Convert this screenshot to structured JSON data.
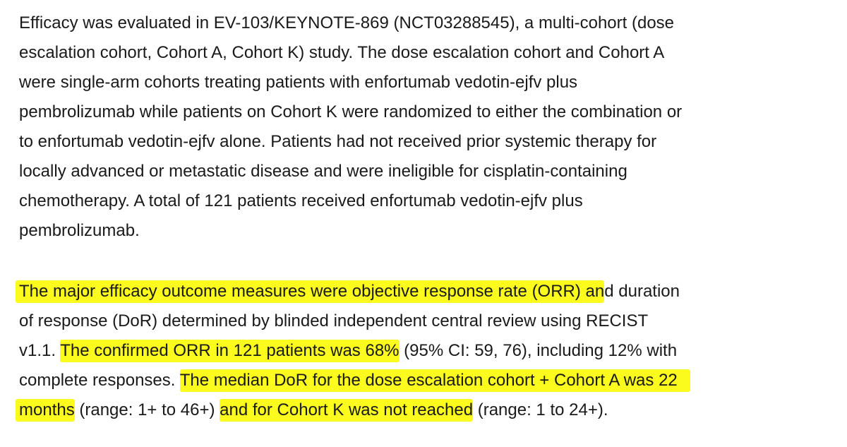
{
  "paragraph1": {
    "lines": [
      "Efficacy was evaluated in EV-103/KEYNOTE-869 (NCT03288545), a multi-cohort (dose",
      "escalation cohort, Cohort A, Cohort K) study. The dose escalation cohort and Cohort A",
      "were single-arm cohorts treating patients with enfortumab vedotin-ejfv plus",
      "pembrolizumab while patients on Cohort K were randomized to either the combination or",
      "to enfortumab vedotin-ejfv alone. Patients had not received prior systemic therapy for",
      "locally advanced or metastatic disease and were ineligible for cisplatin-containing",
      "chemotherapy. A total of 121 patients received enfortumab vedotin-ejfv plus",
      "pembrolizumab."
    ]
  },
  "paragraph2": {
    "line1": {
      "highlighted": "The major efficacy outcome measures were objective response rate (ORR) an",
      "plain": "d duration"
    },
    "line2": {
      "plain": "of response (DoR) determined by blinded independent central review using RECIST"
    },
    "line3": {
      "plain_before": "v1.1. ",
      "highlighted": "The confirmed ORR in 121 patients was 68%",
      "plain_after": " (95% CI: 59, 76), including 12% with"
    },
    "line4": {
      "plain_before": "complete responses. ",
      "highlighted": "The median DoR for the dose escalation cohort + Cohort A was 22"
    },
    "line5": {
      "highlighted_a": "months",
      "plain_a": " (range: 1+ to 46+) ",
      "highlighted_b": "and for Cohort K was not reached",
      "plain_b": " (range: 1 to 24+)."
    }
  },
  "colors": {
    "highlight": "#fbfb1e",
    "text": "#1a1a1a",
    "background": "#ffffff"
  }
}
